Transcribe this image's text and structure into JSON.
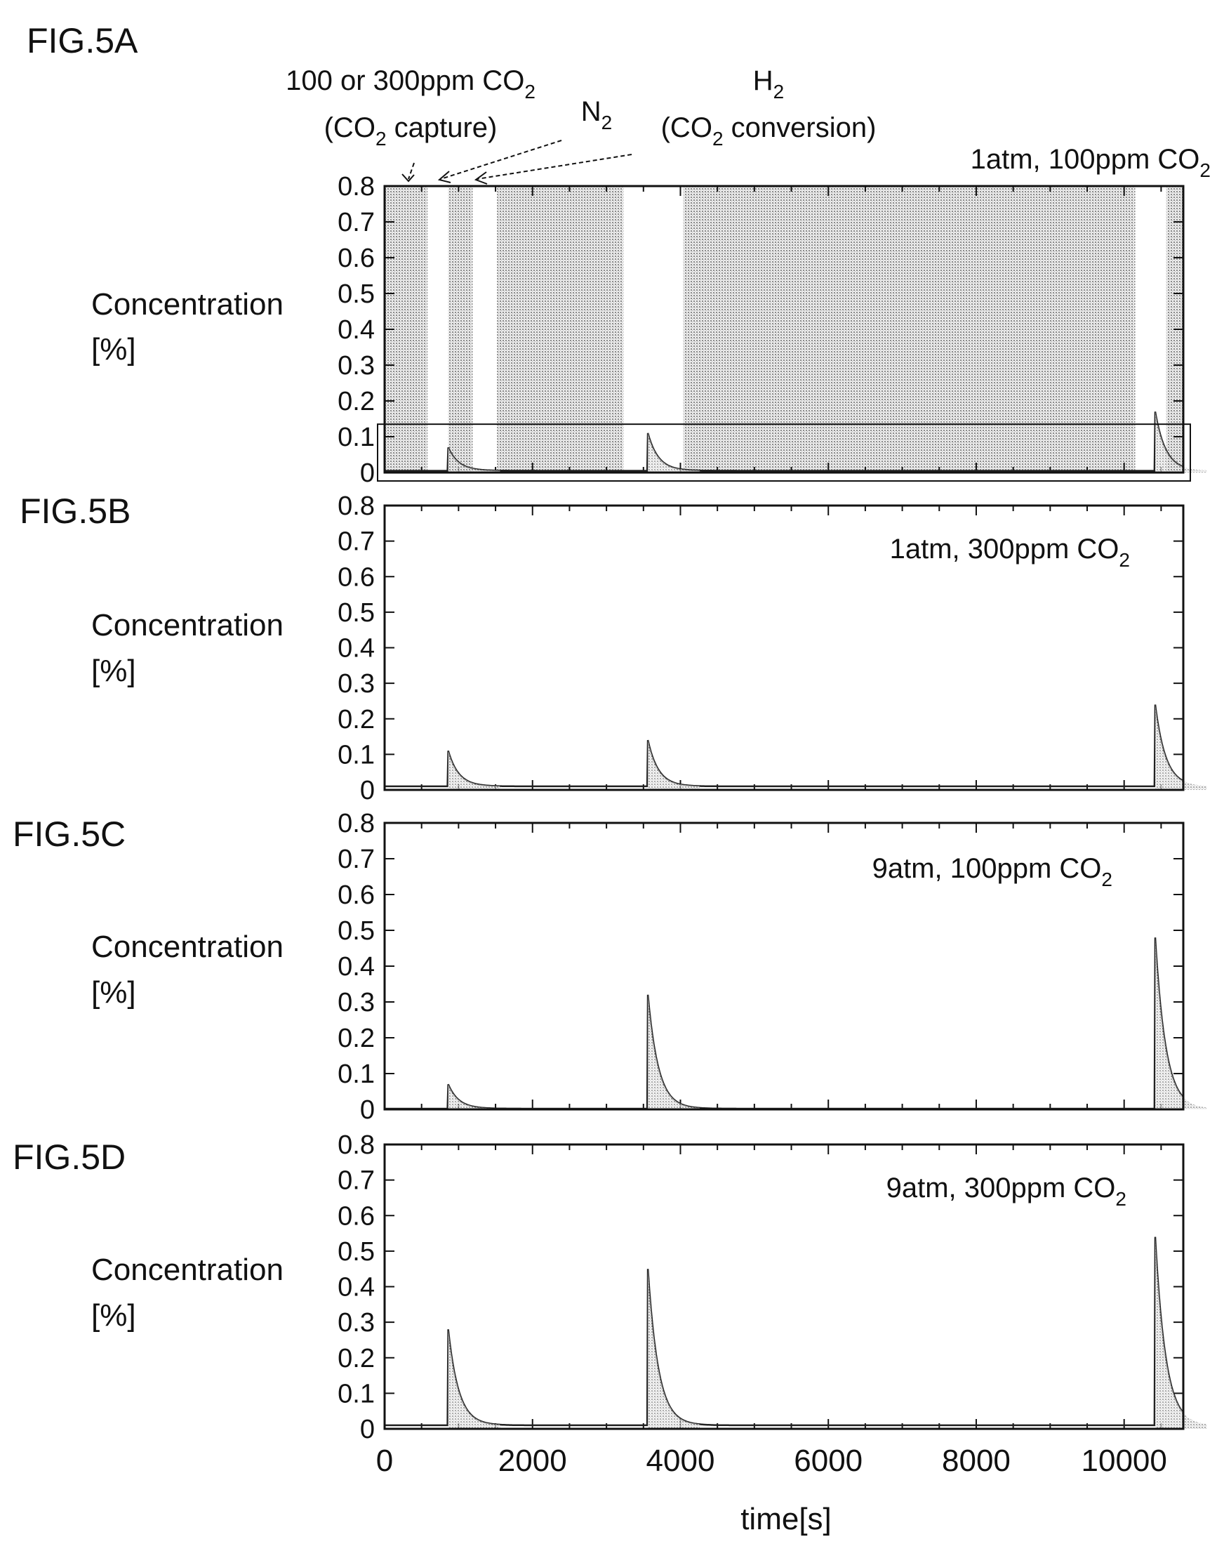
{
  "chart_data": {
    "x_axis": {
      "label": "time[s]",
      "ticks": [
        0,
        2000,
        4000,
        6000,
        8000,
        10000
      ],
      "range": [
        0,
        10800
      ]
    },
    "y_axis": {
      "ticks": [
        0,
        0.1,
        0.2,
        0.3,
        0.4,
        0.5,
        0.6,
        0.7,
        0.8
      ],
      "range": [
        0,
        0.8
      ]
    },
    "panels": [
      {
        "figure_label": "FIG.5A",
        "type": "line",
        "condition": {
          "pre": "1atm, 100ppm CO",
          "sub": "2"
        },
        "ylabel_line1": "Concentration",
        "ylabel_line2": "[%]",
        "shaded_regions_s": [
          [
            0,
            580
          ],
          [
            860,
            1190
          ],
          [
            1520,
            3230
          ],
          [
            4040,
            10150
          ],
          [
            10570,
            10800
          ]
        ],
        "peaks": [
          {
            "t": 860,
            "peak": 0.07
          },
          {
            "t": 3560,
            "peak": 0.11
          },
          {
            "t": 10420,
            "peak": 0.17
          }
        ],
        "baseline": 0.005
      },
      {
        "figure_label": "FIG.5B",
        "type": "line",
        "condition": {
          "pre": "1atm, 300ppm CO",
          "sub": "2"
        },
        "ylabel_line1": "Concentration",
        "ylabel_line2": "[%]",
        "peaks": [
          {
            "t": 860,
            "peak": 0.11
          },
          {
            "t": 3560,
            "peak": 0.14
          },
          {
            "t": 10420,
            "peak": 0.24
          }
        ],
        "baseline": 0.01
      },
      {
        "figure_label": "FIG.5C",
        "type": "line",
        "condition": {
          "pre": "9atm, 100ppm CO",
          "sub": "2"
        },
        "ylabel_line1": "Concentration",
        "ylabel_line2": "[%]",
        "peaks": [
          {
            "t": 860,
            "peak": 0.07
          },
          {
            "t": 3560,
            "peak": 0.32
          },
          {
            "t": 10420,
            "peak": 0.48
          }
        ],
        "baseline": 0.002
      },
      {
        "figure_label": "FIG.5D",
        "type": "line",
        "condition": {
          "pre": "9atm, 300ppm CO",
          "sub": "2"
        },
        "ylabel_line1": "Concentration",
        "ylabel_line2": "[%]",
        "peaks": [
          {
            "t": 860,
            "peak": 0.28
          },
          {
            "t": 3560,
            "peak": 0.45
          },
          {
            "t": 10420,
            "peak": 0.54
          }
        ],
        "baseline": 0.01
      }
    ],
    "annotations": {
      "capture_line1_pre": "100 or 300ppm CO",
      "capture_line1_sub": "2",
      "capture_line2_pre": "(CO",
      "capture_line2_sub": "2",
      "capture_line2_post": " capture)",
      "n2_pre": "N",
      "n2_sub": "2",
      "h2_pre": "H",
      "h2_sub": "2",
      "conversion_pre": "(CO",
      "conversion_sub": "2",
      "conversion_post": " conversion)"
    }
  }
}
